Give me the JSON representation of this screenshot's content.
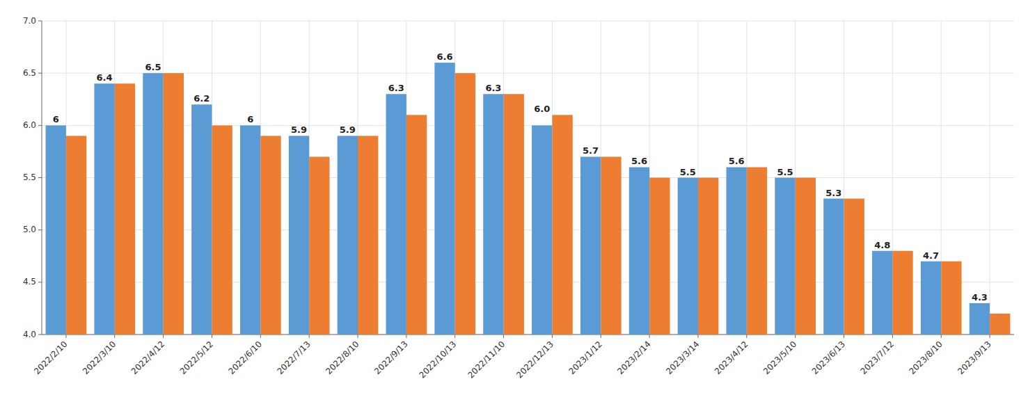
{
  "chart_data": {
    "type": "bar",
    "categories": [
      "2022/2/10",
      "2022/3/10",
      "2022/4/12",
      "2022/5/12",
      "2022/6/10",
      "2022/7/13",
      "2022/8/10",
      "2022/9/13",
      "2022/10/13",
      "2022/11/10",
      "2022/12/13",
      "2023/1/12",
      "2023/2/14",
      "2023/3/14",
      "2023/4/12",
      "2023/5/10",
      "2023/6/13",
      "2023/7/12",
      "2023/8/10",
      "2023/9/13"
    ],
    "series": [
      {
        "color": "#5B9BD5",
        "values": [
          6.0,
          6.4,
          6.5,
          6.2,
          6.0,
          5.9,
          5.9,
          6.3,
          6.6,
          6.3,
          6.0,
          5.7,
          5.6,
          5.5,
          5.6,
          5.5,
          5.3,
          4.8,
          4.7,
          4.3
        ],
        "value_labels": [
          "6",
          "6.4",
          "6.5",
          "6.2",
          "6",
          "5.9",
          "5.9",
          "6.3",
          "6.6",
          "6.3",
          "6.0",
          "5.7",
          "5.6",
          "5.5",
          "5.6",
          "5.5",
          "5.3",
          "4.8",
          "4.7",
          "4.3"
        ]
      },
      {
        "color": "#ED7D31",
        "values": [
          5.9,
          6.4,
          6.5,
          6.0,
          5.9,
          5.7,
          5.9,
          6.1,
          6.5,
          6.3,
          6.1,
          5.7,
          5.5,
          5.5,
          5.6,
          5.5,
          5.3,
          4.8,
          4.7,
          4.2
        ]
      }
    ],
    "ylim": [
      4.0,
      7.0
    ],
    "yticks": [
      {
        "value": 4.0,
        "label": "4.0"
      },
      4.5,
      {
        "value": 5.0,
        "label": "5.0"
      },
      5.5,
      {
        "value": 6.0,
        "label": "6.0"
      },
      6.5,
      {
        "value": 7.0,
        "label": "7.0"
      }
    ],
    "grid": true,
    "data_labels": true
  }
}
